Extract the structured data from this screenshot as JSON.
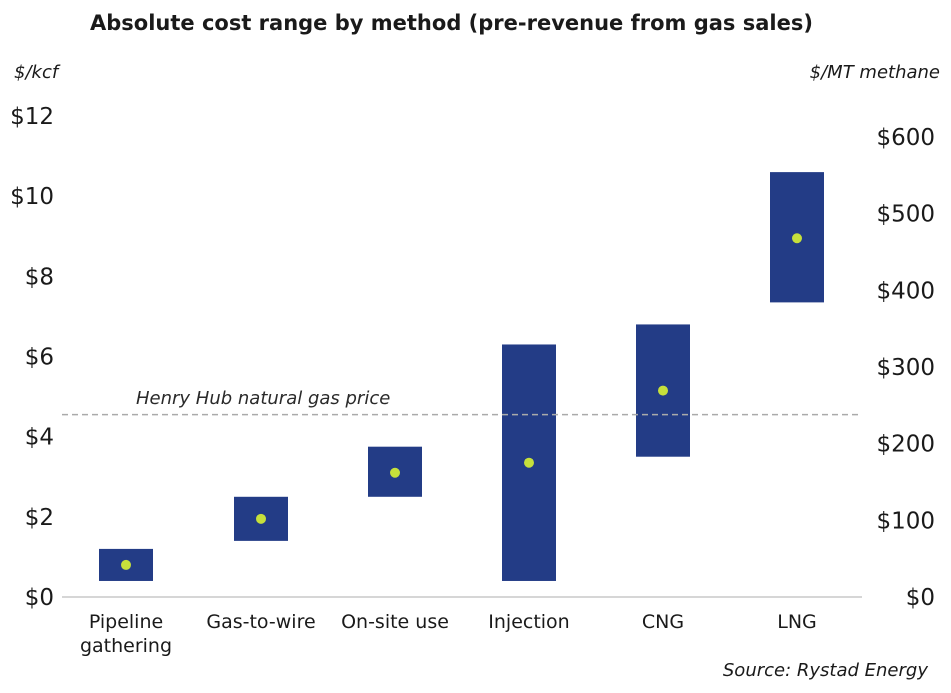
{
  "chart_data": {
    "type": "floating-bar",
    "title": "Absolute cost range by method (pre-revenue from gas sales)",
    "ylabel_left": "$/kcf",
    "ylabel_right": "$/MT methane",
    "ylim_left": [
      0,
      12
    ],
    "yticks_left": [
      0,
      2,
      4,
      6,
      8,
      10,
      12
    ],
    "ytick_labels_left": [
      "$0",
      "$2",
      "$4",
      "$6",
      "$8",
      "$10",
      "$12"
    ],
    "ylim_right": [
      0,
      640
    ],
    "yticks_right": [
      0,
      100,
      200,
      300,
      400,
      500,
      600
    ],
    "ytick_labels_right": [
      "$0",
      "$100",
      "$200",
      "$300",
      "$400",
      "$500",
      "$600"
    ],
    "categories": [
      [
        "Pipeline",
        "gathering"
      ],
      [
        "Gas-to-wire"
      ],
      [
        "On-site use"
      ],
      [
        "Injection"
      ],
      [
        "CNG"
      ],
      [
        "LNG"
      ]
    ],
    "ranges": [
      {
        "low": 0.4,
        "high": 1.2,
        "mid": 0.8
      },
      {
        "low": 1.4,
        "high": 2.5,
        "mid": 1.95
      },
      {
        "low": 2.5,
        "high": 3.75,
        "mid": 3.1
      },
      {
        "low": 0.4,
        "high": 6.3,
        "mid": 3.35
      },
      {
        "low": 3.5,
        "high": 6.8,
        "mid": 5.15
      },
      {
        "low": 7.35,
        "high": 10.6,
        "mid": 8.95
      }
    ],
    "reference_line": {
      "value": 4.55,
      "label": "Henry Hub natural gas price"
    },
    "source": "Source: Rystad Energy",
    "colors": {
      "bar": "#233c86",
      "marker": "#c6e03b",
      "reference": "#aaaaaa",
      "axis": "#c8c8c8"
    }
  }
}
